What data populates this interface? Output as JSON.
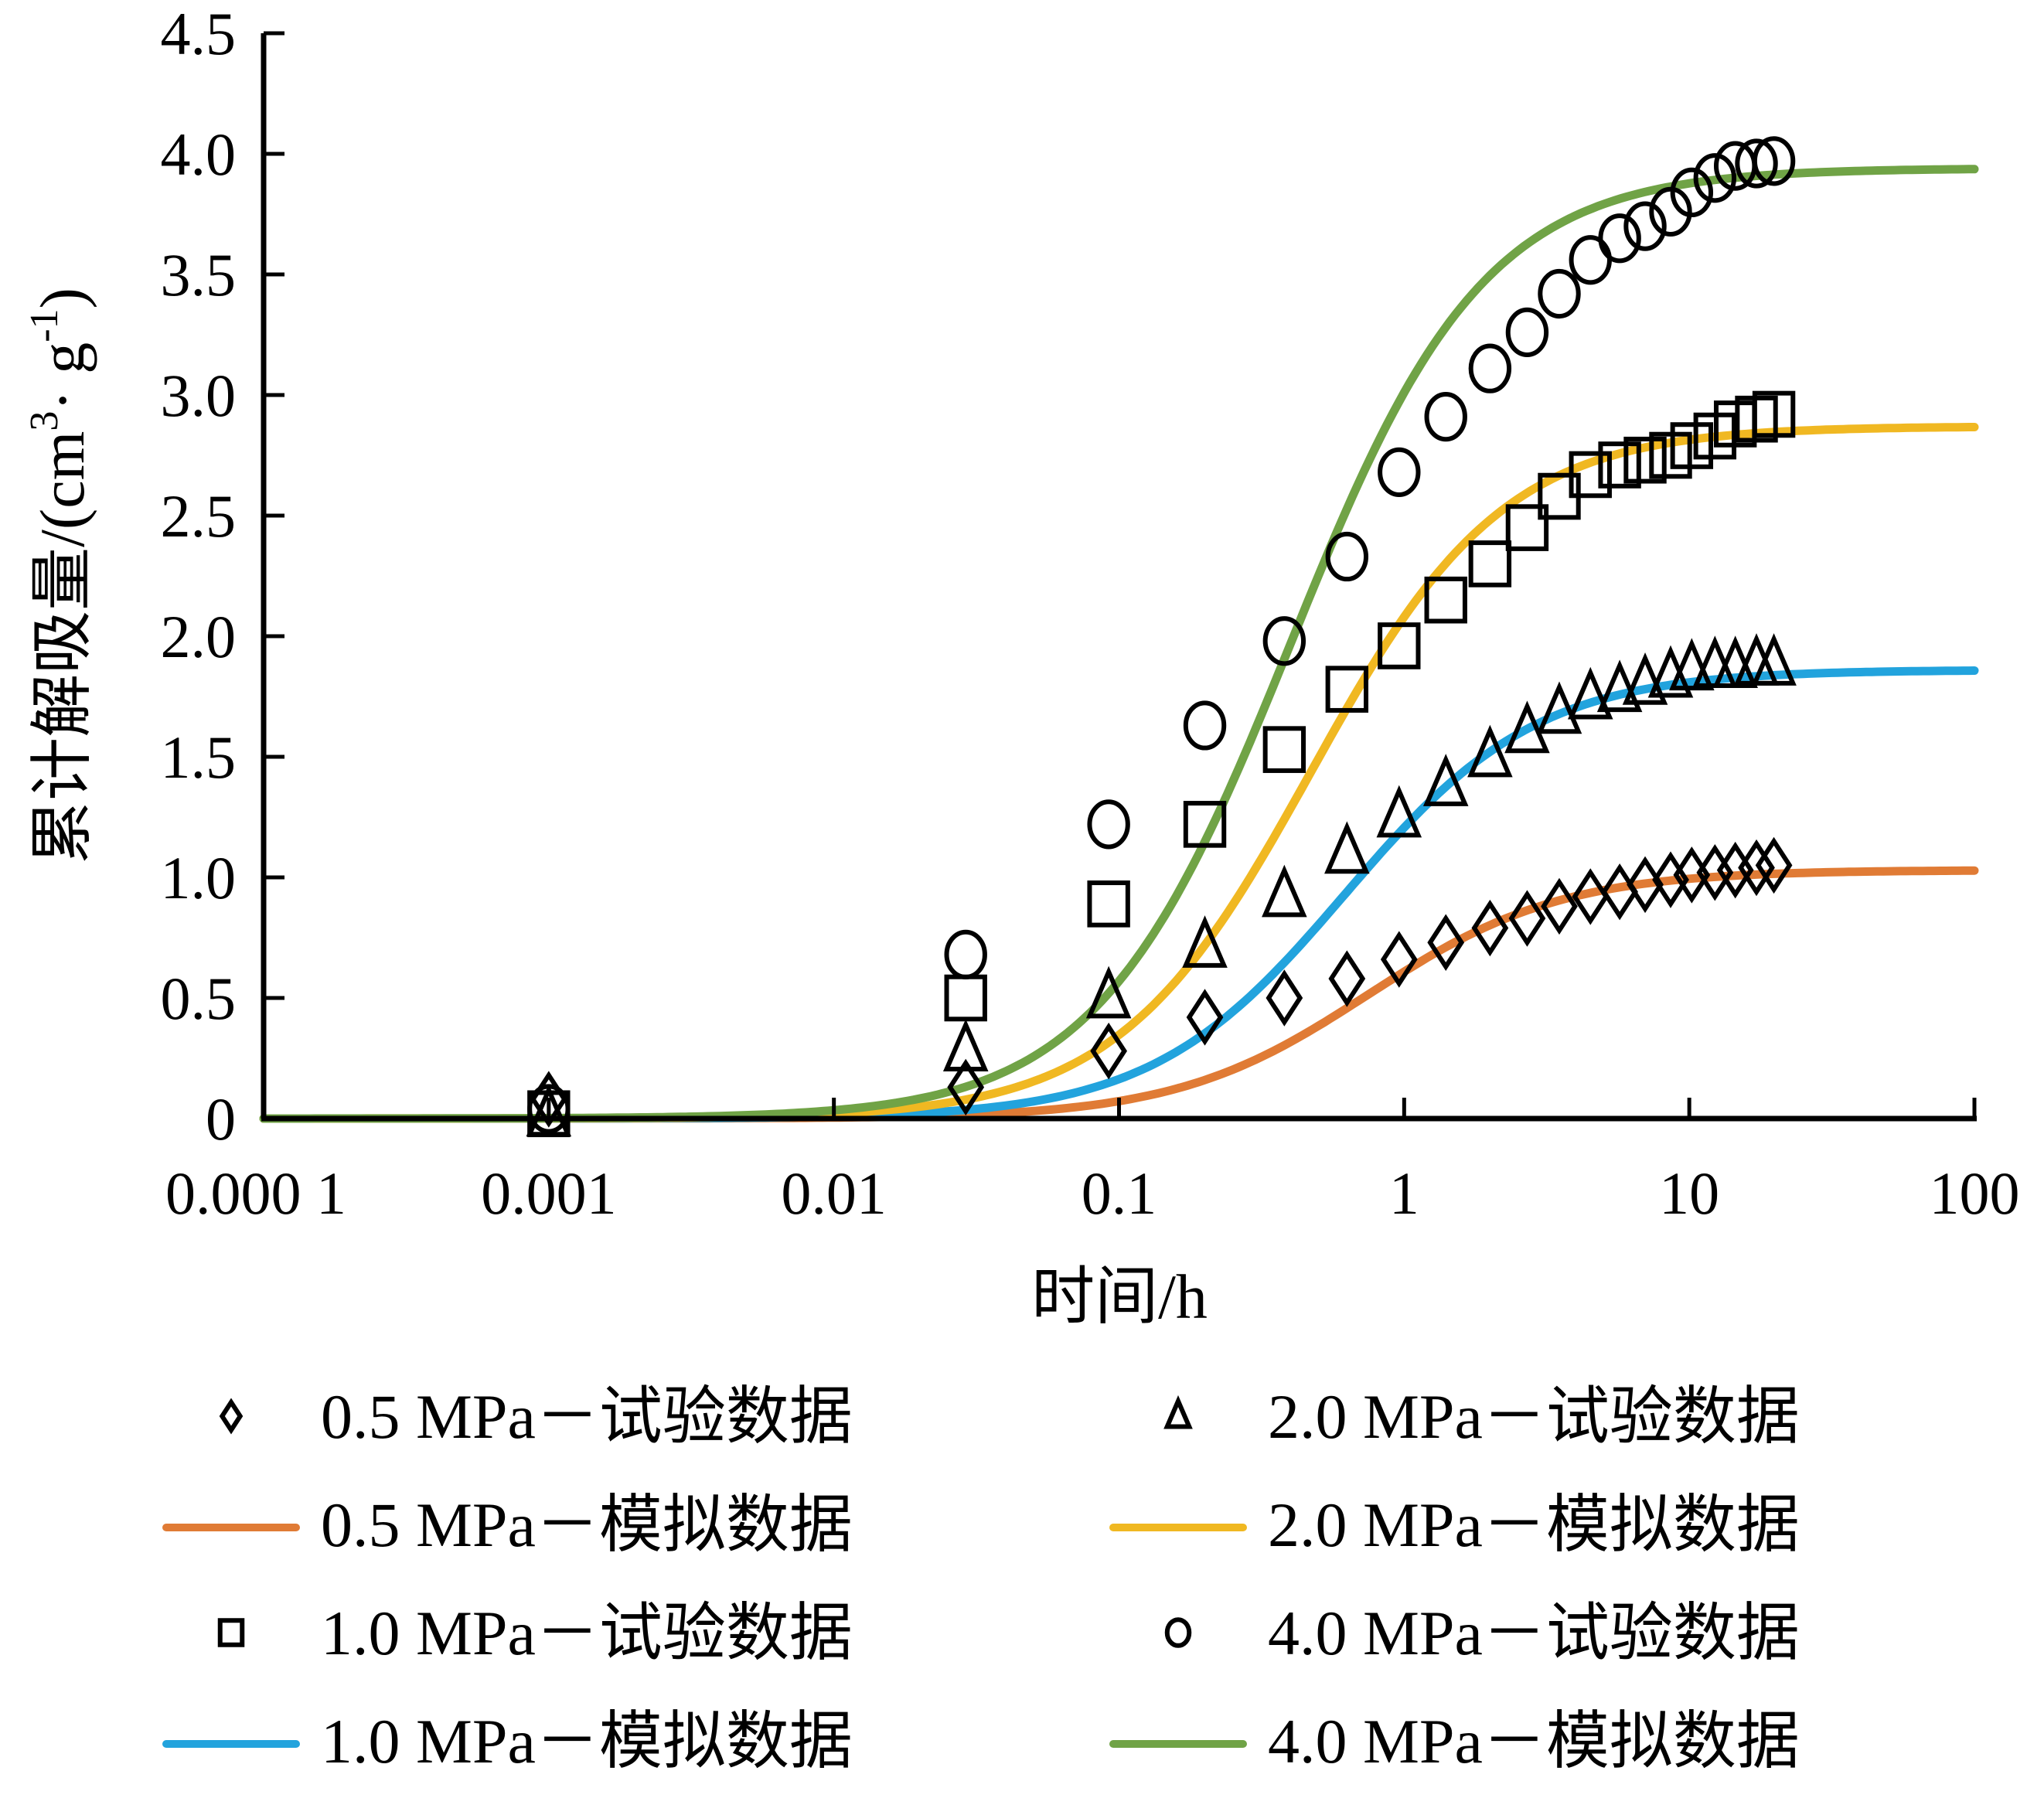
{
  "chart_data": {
    "type": "scatter",
    "title": "",
    "xlabel": "时间/h",
    "ylabel": "累计解吸量/(cm",
    "ylabel_sup1": "3",
    "ylabel_mid": "· g",
    "ylabel_sup2": "-1",
    "ylabel_end": ")",
    "xscale": "log",
    "xlim": [
      0.0001,
      100
    ],
    "ylim": [
      0,
      4.5
    ],
    "grid": false,
    "xticks": [
      0.0001,
      0.001,
      0.01,
      0.1,
      1,
      10,
      100
    ],
    "xtick_labels": [
      "0.000 1",
      "0.001",
      "0.01",
      "0.1",
      "1",
      "10",
      "100"
    ],
    "yticks": [
      0,
      0.5,
      1.0,
      1.5,
      2.0,
      2.5,
      3.0,
      3.5,
      4.0,
      4.5
    ],
    "ytick_labels": [
      "0",
      "0.5",
      "1.0",
      "1.5",
      "2.0",
      "2.5",
      "3.0",
      "3.5",
      "4.0",
      "4.5"
    ],
    "legend_position": "bottom",
    "experimental_x": [
      0.001,
      0.029,
      0.092,
      0.2,
      0.38,
      0.63,
      0.96,
      1.4,
      2.0,
      2.7,
      3.5,
      4.5,
      5.7,
      7.0,
      8.6,
      10.2,
      12.3,
      14.5,
      17.2,
      19.8
    ],
    "series": [
      {
        "name": "0.5 MPa－试验数据",
        "kind": "marker",
        "marker": "diamond",
        "color": "#000000",
        "y": [
          0.08,
          0.13,
          0.28,
          0.42,
          0.5,
          0.58,
          0.66,
          0.73,
          0.79,
          0.83,
          0.88,
          0.92,
          0.94,
          0.97,
          0.99,
          1.01,
          1.02,
          1.03,
          1.04,
          1.05
        ]
      },
      {
        "name": "0.5 MPa－模拟数据",
        "kind": "line",
        "color": "#E07B35",
        "plateau": 1.03,
        "t50": 0.75,
        "slope": 0.78
      },
      {
        "name": "1.0 MPa－试验数据",
        "kind": "marker",
        "marker": "square",
        "color": "#000000",
        "y": [
          0.02,
          0.5,
          0.89,
          1.22,
          1.53,
          1.78,
          1.96,
          2.15,
          2.3,
          2.45,
          2.58,
          2.67,
          2.71,
          2.73,
          2.75,
          2.79,
          2.83,
          2.88,
          2.9,
          2.92
        ]
      },
      {
        "name": "1.0 MPa－模拟数据",
        "kind": "line",
        "color": "#22A3DD",
        "plateau": 1.86,
        "t50": 0.62,
        "slope": 0.78
      },
      {
        "name": "2.0 MPa－试验数据",
        "kind": "marker",
        "marker": "triangle",
        "color": "#000000",
        "y": [
          0.01,
          0.28,
          0.5,
          0.71,
          0.92,
          1.1,
          1.25,
          1.38,
          1.5,
          1.6,
          1.68,
          1.74,
          1.77,
          1.8,
          1.83,
          1.86,
          1.87,
          1.87,
          1.88,
          1.88
        ]
      },
      {
        "name": "2.0 MPa－模拟数据",
        "kind": "line",
        "color": "#F0B822",
        "plateau": 2.87,
        "t50": 0.47,
        "slope": 0.78
      },
      {
        "name": "4.0 MPa－试验数据",
        "kind": "marker",
        "marker": "circle",
        "color": "#000000",
        "y": [
          0.04,
          0.68,
          1.22,
          1.63,
          1.98,
          2.33,
          2.68,
          2.91,
          3.11,
          3.26,
          3.42,
          3.56,
          3.65,
          3.7,
          3.76,
          3.84,
          3.9,
          3.95,
          3.96,
          3.97
        ]
      },
      {
        "name": "4.0 MPa－模拟数据",
        "kind": "line",
        "color": "#70A346",
        "plateau": 3.94,
        "t50": 0.4,
        "slope": 0.78
      }
    ]
  },
  "legend": {
    "items": [
      {
        "label": "0.5 MPa－试验数据",
        "series": 0
      },
      {
        "label": "0.5 MPa－模拟数据",
        "series": 1
      },
      {
        "label": "1.0 MPa－试验数据",
        "series": 2
      },
      {
        "label": "1.0 MPa－模拟数据",
        "series": 3
      },
      {
        "label": "2.0 MPa－试验数据",
        "series": 4
      },
      {
        "label": "2.0 MPa－模拟数据",
        "series": 5
      },
      {
        "label": "4.0 MPa－试验数据",
        "series": 6
      },
      {
        "label": "4.0 MPa－模拟数据",
        "series": 7
      }
    ]
  }
}
